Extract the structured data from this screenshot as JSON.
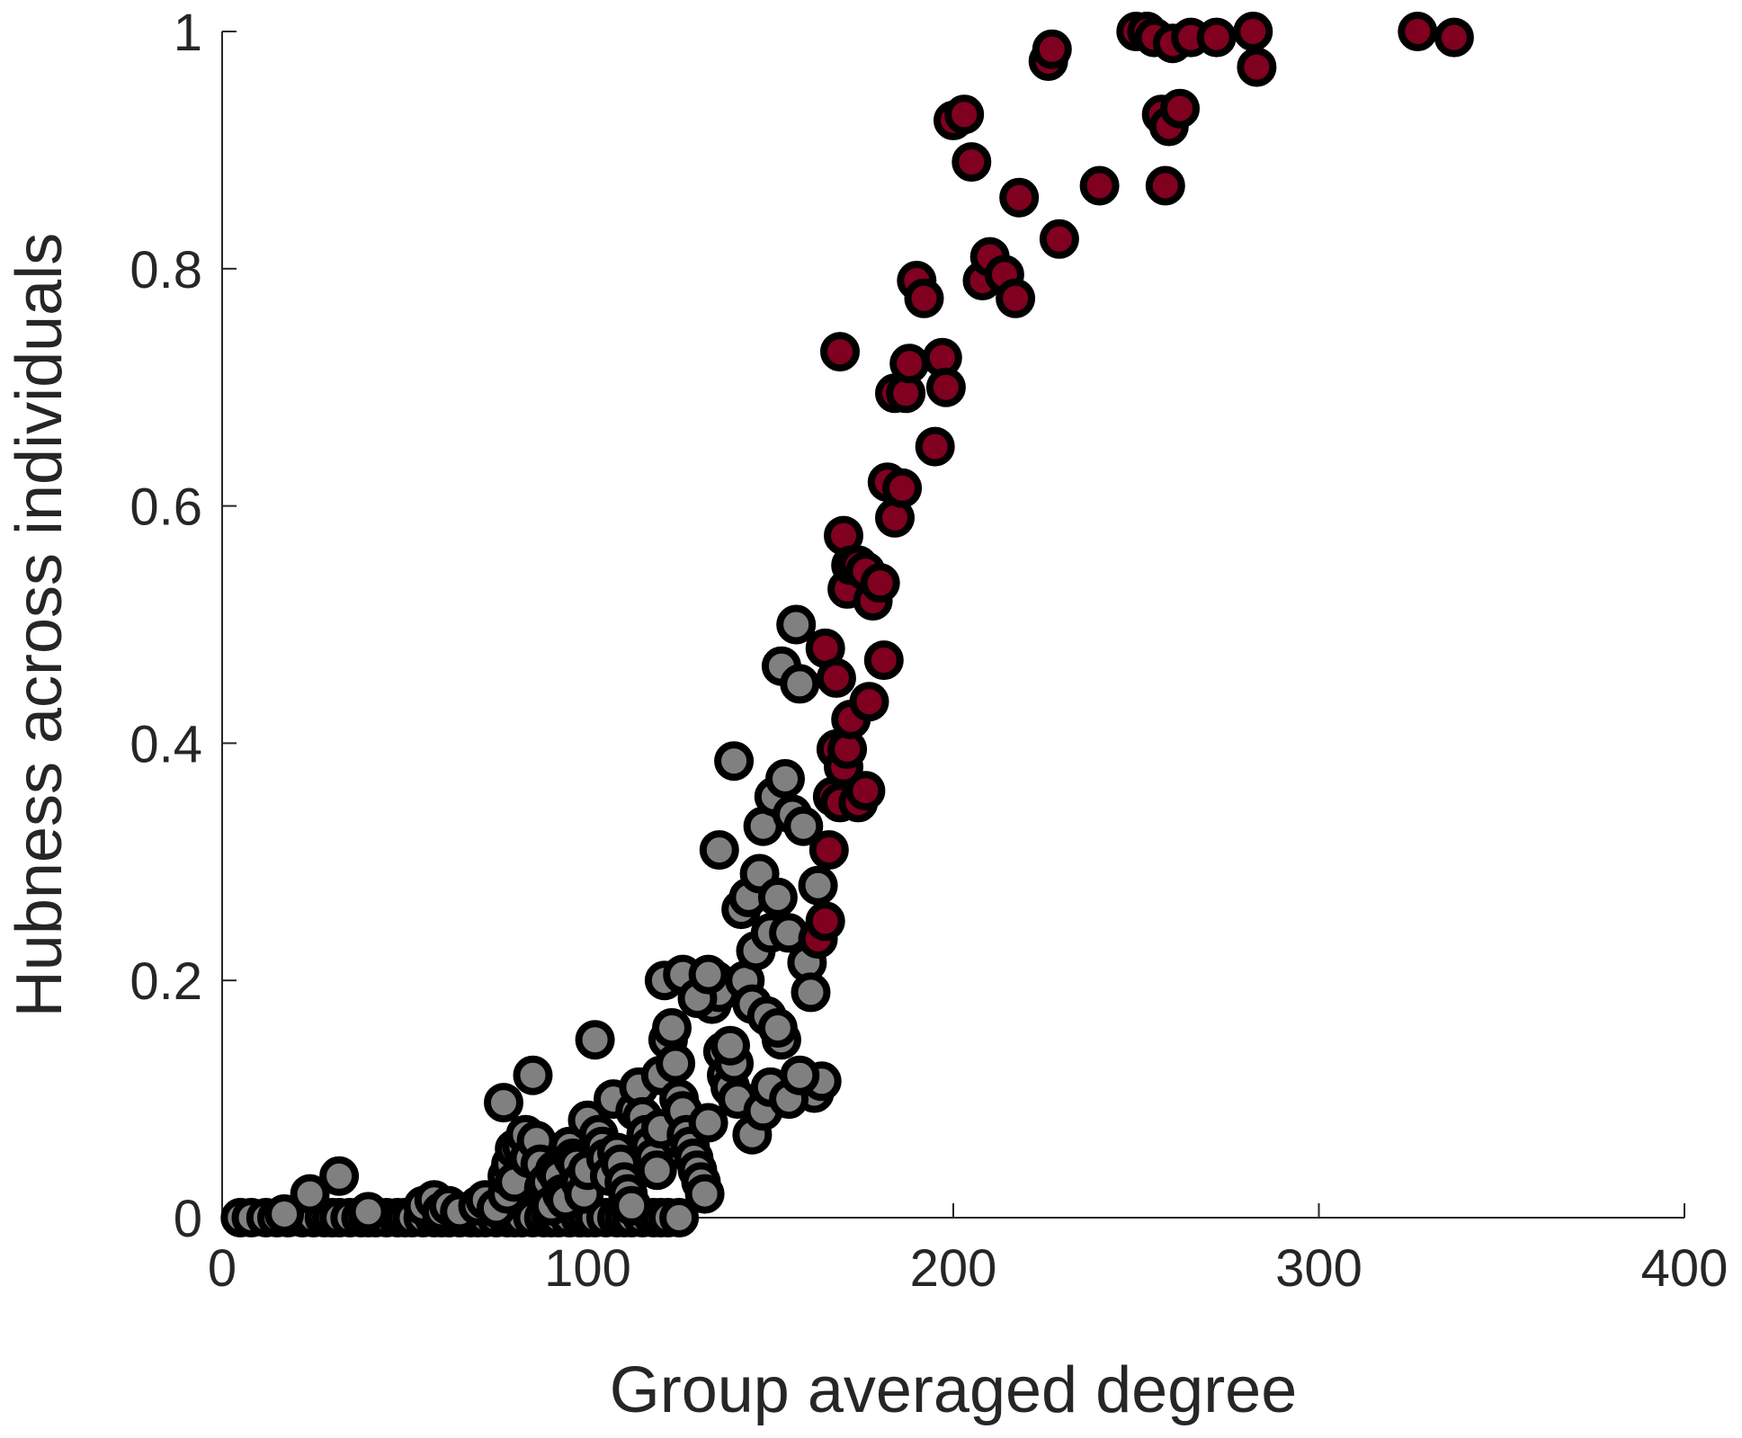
{
  "chart_data": {
    "type": "scatter",
    "xlabel": "Group averaged degree",
    "ylabel": "Hubness across individuals",
    "xlim": [
      0,
      400
    ],
    "ylim": [
      0,
      1
    ],
    "x_ticks": [
      0,
      100,
      200,
      300,
      400
    ],
    "y_ticks": [
      0,
      0.2,
      0.4,
      0.6,
      0.8,
      1
    ],
    "x_tick_labels": [
      "0",
      "100",
      "200",
      "300",
      "400"
    ],
    "y_tick_labels": [
      "0",
      "0.2",
      "0.4",
      "0.6",
      "0.8",
      "1"
    ],
    "grid": false,
    "series": [
      {
        "color": "#808080",
        "edge_color": "#000000",
        "points": [
          [
            5,
            0
          ],
          [
            8,
            0
          ],
          [
            12,
            0
          ],
          [
            15,
            0
          ],
          [
            18,
            0
          ],
          [
            22,
            0
          ],
          [
            25,
            0
          ],
          [
            28,
            0
          ],
          [
            30,
            0
          ],
          [
            32,
            0
          ],
          [
            35,
            0
          ],
          [
            38,
            0
          ],
          [
            40,
            0
          ],
          [
            42,
            0
          ],
          [
            45,
            0
          ],
          [
            48,
            0
          ],
          [
            50,
            0
          ],
          [
            52,
            0
          ],
          [
            55,
            0
          ],
          [
            58,
            0
          ],
          [
            60,
            0
          ],
          [
            62,
            0
          ],
          [
            65,
            0
          ],
          [
            68,
            0
          ],
          [
            70,
            0
          ],
          [
            72,
            0
          ],
          [
            75,
            0
          ],
          [
            78,
            0
          ],
          [
            80,
            0
          ],
          [
            82,
            0
          ],
          [
            85,
            0
          ],
          [
            88,
            0
          ],
          [
            90,
            0
          ],
          [
            92,
            0
          ],
          [
            95,
            0
          ],
          [
            98,
            0
          ],
          [
            100,
            0
          ],
          [
            102,
            0
          ],
          [
            105,
            0
          ],
          [
            108,
            0
          ],
          [
            110,
            0
          ],
          [
            112,
            0
          ],
          [
            115,
            0
          ],
          [
            118,
            0
          ],
          [
            120,
            0
          ],
          [
            122,
            0
          ],
          [
            125,
            0
          ],
          [
            17,
            0.003
          ],
          [
            24,
            0.02
          ],
          [
            32,
            0.035
          ],
          [
            40,
            0.005
          ],
          [
            55,
            0.01
          ],
          [
            58,
            0.015
          ],
          [
            60,
            0.005
          ],
          [
            62,
            0.01
          ],
          [
            65,
            0.005
          ],
          [
            70,
            0.01
          ],
          [
            72,
            0.015
          ],
          [
            75,
            0.008
          ],
          [
            78,
            0.02
          ],
          [
            80,
            0.04
          ],
          [
            82,
            0.03
          ],
          [
            77,
            0.097
          ],
          [
            78,
            0.035
          ],
          [
            79,
            0.045
          ],
          [
            80,
            0.03
          ],
          [
            80,
            0.058
          ],
          [
            82,
            0.06
          ],
          [
            83,
            0.07
          ],
          [
            84,
            0.05
          ],
          [
            85,
            0.12
          ],
          [
            86,
            0.065
          ],
          [
            87,
            0.045
          ],
          [
            88,
            0.025
          ],
          [
            89,
            0.03
          ],
          [
            90,
            0.01
          ],
          [
            91,
            0.04
          ],
          [
            92,
            0.035
          ],
          [
            93,
            0.02
          ],
          [
            94,
            0.015
          ],
          [
            95,
            0.06
          ],
          [
            96,
            0.05
          ],
          [
            97,
            0.045
          ],
          [
            98,
            0.03
          ],
          [
            99,
            0.02
          ],
          [
            100,
            0.04
          ],
          [
            100,
            0.082
          ],
          [
            102,
            0.15
          ],
          [
            103,
            0.07
          ],
          [
            104,
            0.06
          ],
          [
            105,
            0.05
          ],
          [
            106,
            0.035
          ],
          [
            107,
            0.1
          ],
          [
            108,
            0.055
          ],
          [
            109,
            0.045
          ],
          [
            110,
            0.03
          ],
          [
            111,
            0.02
          ],
          [
            112,
            0.01
          ],
          [
            113,
            0.09
          ],
          [
            114,
            0.11
          ],
          [
            115,
            0.085
          ],
          [
            116,
            0.07
          ],
          [
            117,
            0.06
          ],
          [
            118,
            0.05
          ],
          [
            119,
            0.04
          ],
          [
            120,
            0.075
          ],
          [
            120,
            0.12
          ],
          [
            121,
            0.2
          ],
          [
            122,
            0.15
          ],
          [
            123,
            0.16
          ],
          [
            124,
            0.13
          ],
          [
            125,
            0.1
          ],
          [
            126,
            0.09
          ],
          [
            127,
            0.07
          ],
          [
            128,
            0.06
          ],
          [
            129,
            0.05
          ],
          [
            130,
            0.04
          ],
          [
            131,
            0.03
          ],
          [
            132,
            0.02
          ],
          [
            133,
            0.08
          ],
          [
            134,
            0.18
          ],
          [
            135,
            0.2
          ],
          [
            136,
            0.19
          ],
          [
            137,
            0.14
          ],
          [
            138,
            0.12
          ],
          [
            139,
            0.11
          ],
          [
            140,
            0.13
          ],
          [
            126,
            0.205
          ],
          [
            130,
            0.185
          ],
          [
            133,
            0.205
          ],
          [
            136,
            0.31
          ],
          [
            139,
            0.145
          ],
          [
            140,
            0.385
          ],
          [
            141,
            0.1
          ],
          [
            142,
            0.26
          ],
          [
            143,
            0.2
          ],
          [
            144,
            0.27
          ],
          [
            145,
            0.18
          ],
          [
            146,
            0.225
          ],
          [
            147,
            0.29
          ],
          [
            148,
            0.33
          ],
          [
            149,
            0.17
          ],
          [
            150,
            0.24
          ],
          [
            151,
            0.355
          ],
          [
            152,
            0.27
          ],
          [
            153,
            0.15
          ],
          [
            154,
            0.37
          ],
          [
            155,
            0.24
          ],
          [
            153,
            0.465
          ],
          [
            156,
            0.34
          ],
          [
            157,
            0.5
          ],
          [
            158,
            0.45
          ],
          [
            159,
            0.33
          ],
          [
            160,
            0.215
          ],
          [
            161,
            0.19
          ],
          [
            162,
            0.105
          ],
          [
            163,
            0.28
          ],
          [
            164,
            0.115
          ],
          [
            145,
            0.07
          ],
          [
            148,
            0.09
          ],
          [
            150,
            0.11
          ],
          [
            152,
            0.16
          ],
          [
            155,
            0.1
          ],
          [
            158,
            0.12
          ]
        ]
      },
      {
        "color": "#800020",
        "edge_color": "#000000",
        "points": [
          [
            163,
            0.235
          ],
          [
            165,
            0.25
          ],
          [
            166,
            0.31
          ],
          [
            167,
            0.355
          ],
          [
            168,
            0.395
          ],
          [
            169,
            0.35
          ],
          [
            170,
            0.38
          ],
          [
            171,
            0.395
          ],
          [
            172,
            0.42
          ],
          [
            174,
            0.35
          ],
          [
            176,
            0.36
          ],
          [
            177,
            0.435
          ],
          [
            165,
            0.48
          ],
          [
            168,
            0.455
          ],
          [
            169,
            0.73
          ],
          [
            170,
            0.575
          ],
          [
            171,
            0.53
          ],
          [
            172,
            0.55
          ],
          [
            174,
            0.55
          ],
          [
            176,
            0.545
          ],
          [
            178,
            0.52
          ],
          [
            180,
            0.535
          ],
          [
            181,
            0.47
          ],
          [
            182,
            0.62
          ],
          [
            184,
            0.59
          ],
          [
            186,
            0.615
          ],
          [
            184,
            0.695
          ],
          [
            187,
            0.695
          ],
          [
            188,
            0.72
          ],
          [
            190,
            0.79
          ],
          [
            192,
            0.775
          ],
          [
            195,
            0.65
          ],
          [
            197,
            0.725
          ],
          [
            198,
            0.7
          ],
          [
            200,
            0.925
          ],
          [
            203,
            0.93
          ],
          [
            205,
            0.89
          ],
          [
            208,
            0.79
          ],
          [
            210,
            0.81
          ],
          [
            214,
            0.795
          ],
          [
            217,
            0.775
          ],
          [
            218,
            0.86
          ],
          [
            226,
            0.975
          ],
          [
            227,
            0.985
          ],
          [
            229,
            0.825
          ],
          [
            240,
            0.87
          ],
          [
            250,
            1
          ],
          [
            253,
            1
          ],
          [
            255,
            0.995
          ],
          [
            257,
            0.93
          ],
          [
            258,
            0.87
          ],
          [
            259,
            0.92
          ],
          [
            260,
            0.99
          ],
          [
            262,
            0.935
          ],
          [
            265,
            0.995
          ],
          [
            272,
            0.995
          ],
          [
            282,
            1
          ],
          [
            283,
            0.97
          ],
          [
            327,
            1
          ],
          [
            337,
            0.995
          ]
        ]
      }
    ]
  }
}
